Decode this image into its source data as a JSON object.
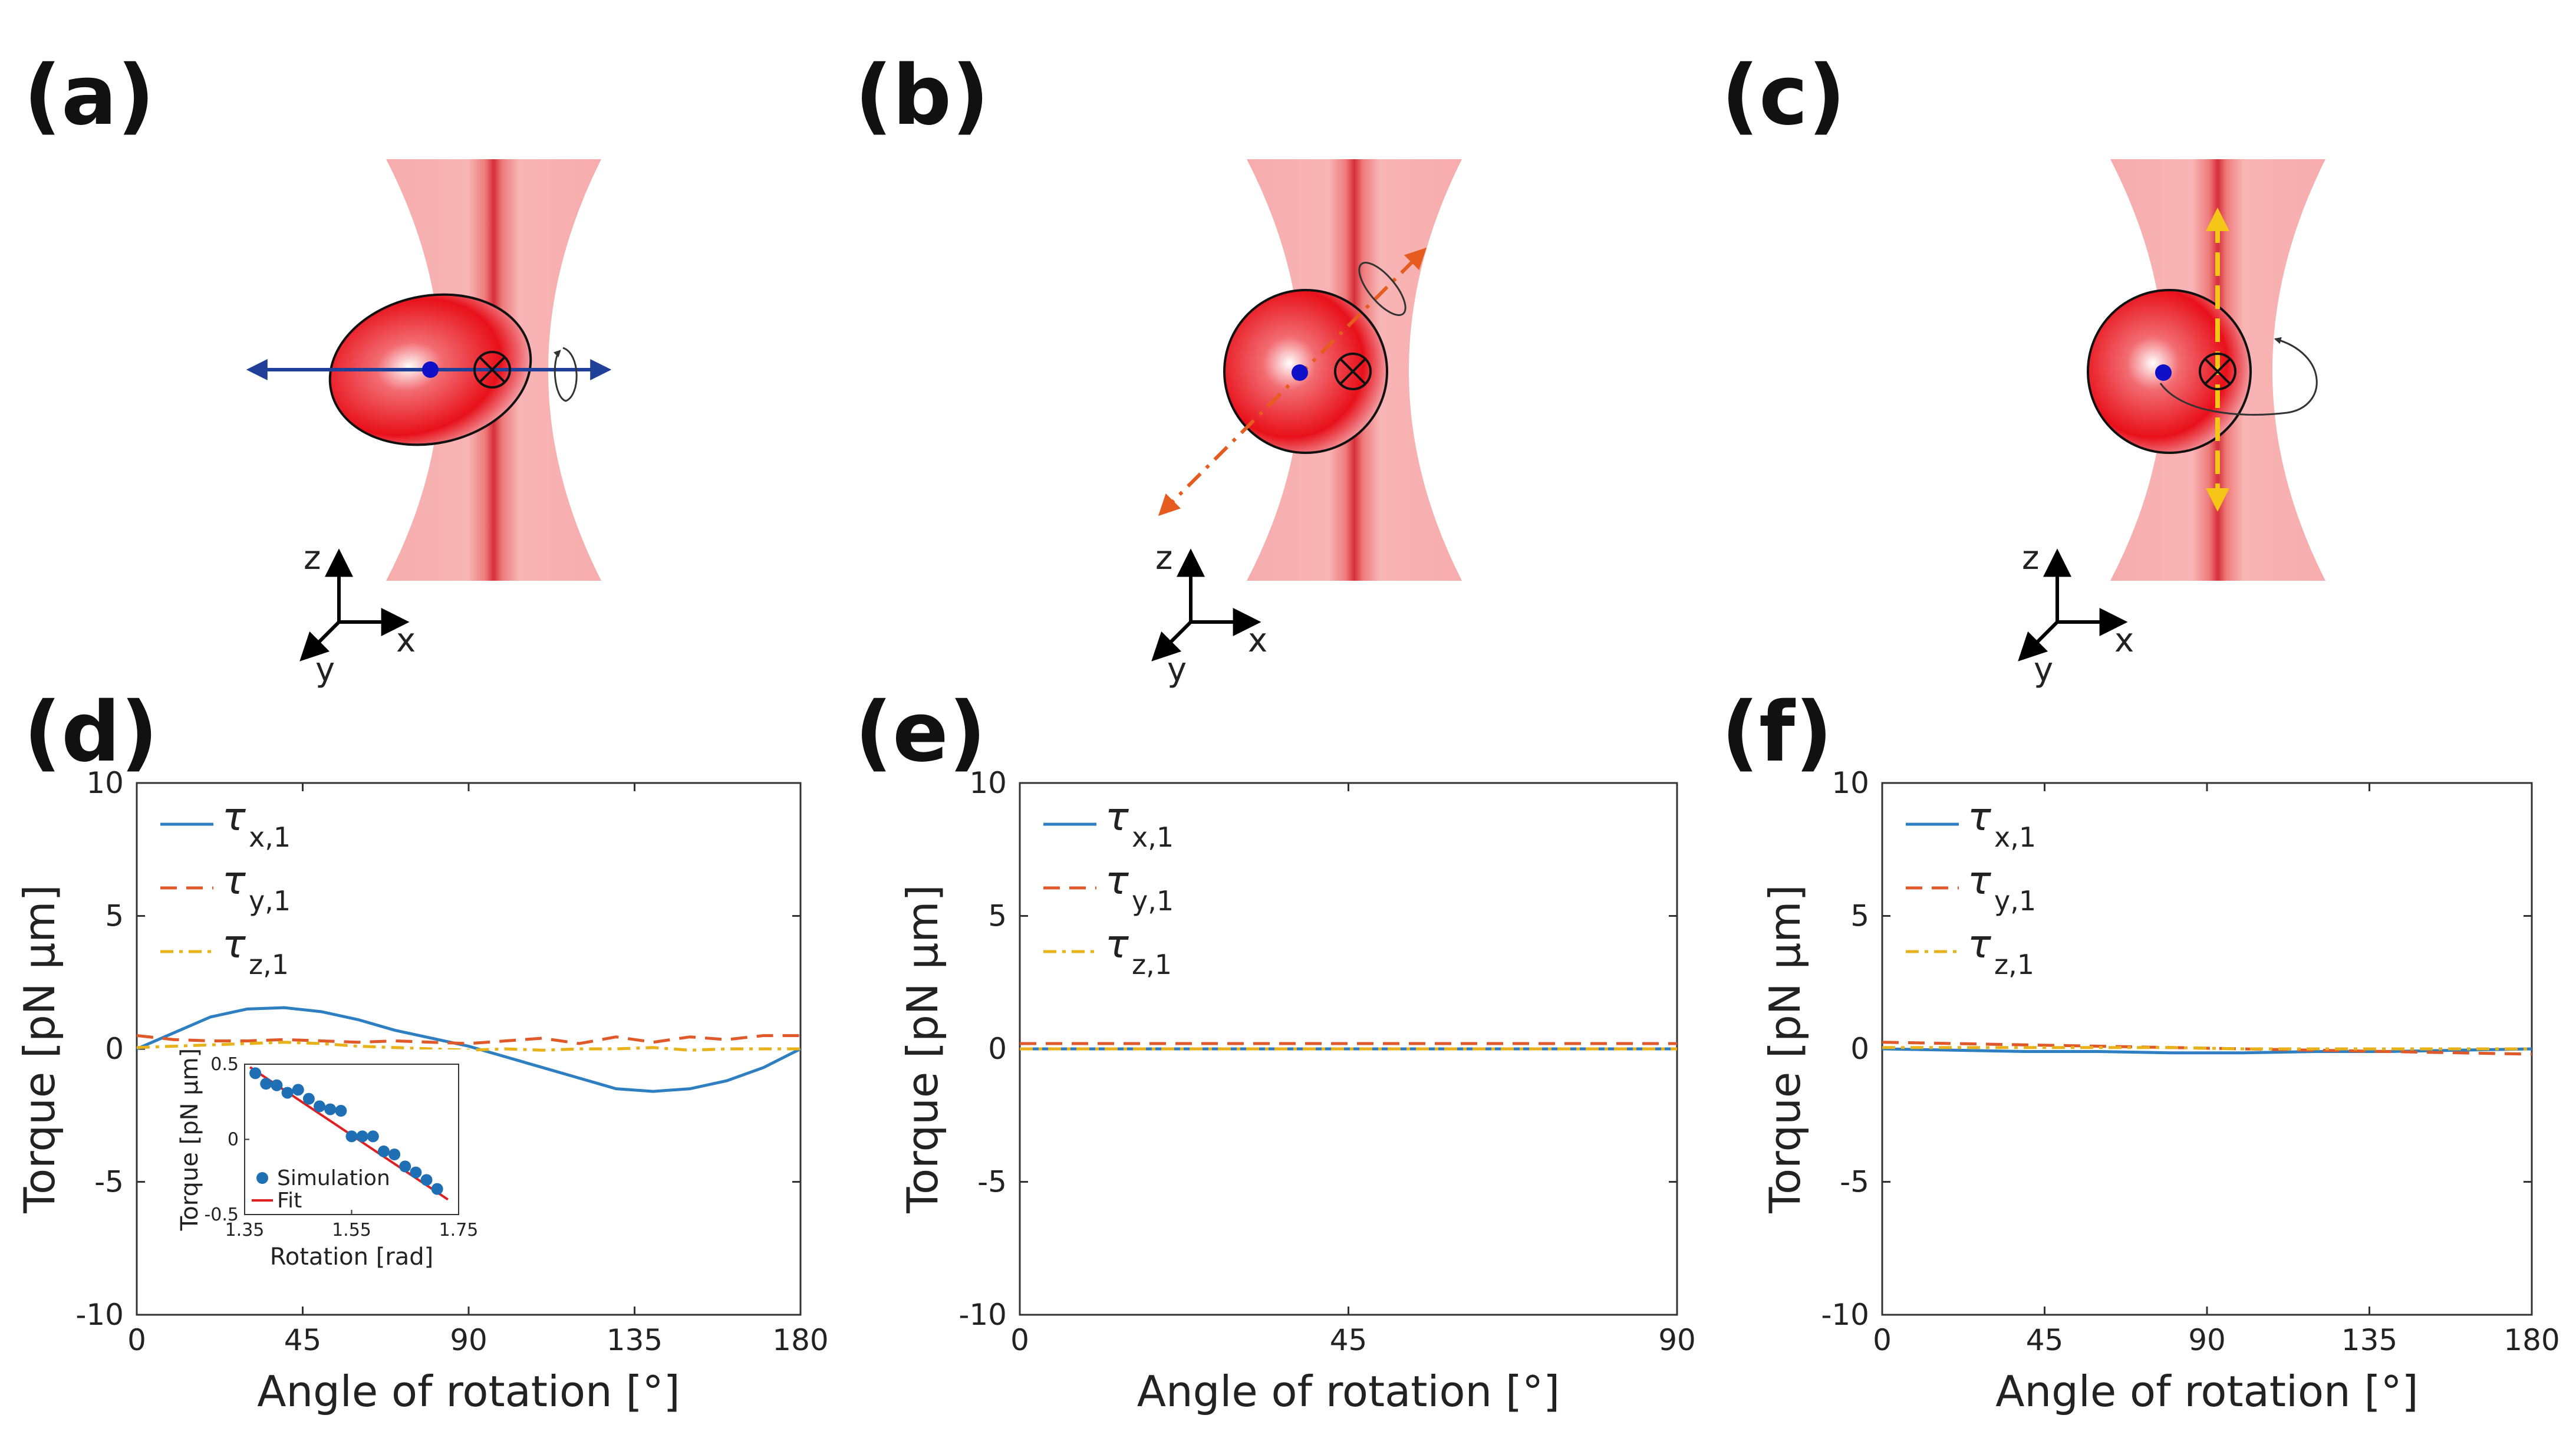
{
  "panel_labels": {
    "a": "(a)",
    "b": "(b)",
    "c": "(c)",
    "d": "(d)",
    "e": "(e)",
    "f": "(f)"
  },
  "coord_labels": {
    "x": "x",
    "y": "y",
    "z": "z"
  },
  "colors": {
    "tau_x": "#2e7fc1",
    "tau_y": "#e0592a",
    "tau_z": "#e8b31a",
    "rotation_axis_a": "#1f3f99",
    "rotation_axis_b": "#e65c1e",
    "rotation_axis_c": "#f5c518",
    "beam": "#f28b8b",
    "particle": "#e8101a",
    "fit": "#e02020",
    "sim_points": "#1f6fb5"
  },
  "legend": {
    "tau": "τ",
    "x_sub": "x,1",
    "y_sub": "y,1",
    "z_sub": "z,1"
  },
  "chart_data": [
    {
      "type": "line",
      "panel": "d",
      "xlabel": "Angle of rotation [°]",
      "ylabel": "Torque [pN µm]",
      "xlim": [
        0,
        180
      ],
      "ylim": [
        -10,
        10
      ],
      "xticks": [
        "0",
        "45",
        "90",
        "135",
        "180"
      ],
      "yticks": [
        "-10",
        "-5",
        "0",
        "5",
        "10"
      ],
      "legend_position": "top-left",
      "x": [
        0,
        10,
        20,
        30,
        40,
        50,
        60,
        70,
        80,
        90,
        100,
        110,
        120,
        130,
        140,
        150,
        160,
        170,
        180
      ],
      "series": [
        {
          "name": "τx,1",
          "values": [
            0.0,
            0.6,
            1.2,
            1.5,
            1.55,
            1.4,
            1.1,
            0.7,
            0.4,
            0.1,
            -0.3,
            -0.7,
            -1.1,
            -1.5,
            -1.6,
            -1.5,
            -1.2,
            -0.7,
            0.0
          ]
        },
        {
          "name": "τy,1",
          "values": [
            0.5,
            0.35,
            0.3,
            0.3,
            0.35,
            0.3,
            0.25,
            0.3,
            0.25,
            0.2,
            0.3,
            0.4,
            0.2,
            0.45,
            0.25,
            0.45,
            0.35,
            0.5,
            0.5
          ]
        },
        {
          "name": "τz,1",
          "values": [
            0.05,
            0.1,
            0.15,
            0.2,
            0.25,
            0.2,
            0.1,
            0.05,
            0.0,
            -0.05,
            0.0,
            -0.05,
            0.0,
            0.0,
            0.05,
            -0.05,
            0.0,
            0.0,
            0.0
          ]
        }
      ],
      "inset": {
        "type": "scatter",
        "xlabel": "Rotation [rad]",
        "ylabel": "Torque [pN µm]",
        "xlim": [
          1.35,
          1.75
        ],
        "ylim": [
          -0.5,
          0.5
        ],
        "xticks": [
          "1.35",
          "1.55",
          "1.75"
        ],
        "yticks": [
          "-0.5",
          "0",
          "0.5"
        ],
        "legend": [
          "Simulation",
          "Fit"
        ],
        "x": [
          1.37,
          1.39,
          1.41,
          1.43,
          1.45,
          1.47,
          1.49,
          1.51,
          1.53,
          1.55,
          1.57,
          1.59,
          1.61,
          1.63,
          1.65,
          1.67,
          1.69,
          1.71
        ],
        "values": [
          0.44,
          0.37,
          0.36,
          0.31,
          0.33,
          0.27,
          0.22,
          0.2,
          0.19,
          0.02,
          0.02,
          0.02,
          -0.08,
          -0.1,
          -0.18,
          -0.22,
          -0.27,
          -0.33
        ],
        "fit": {
          "x": [
            1.36,
            1.73
          ],
          "y": [
            0.48,
            -0.4
          ]
        }
      }
    },
    {
      "type": "line",
      "panel": "e",
      "xlabel": "Angle of rotation [°]",
      "ylabel": "Torque [pN µm]",
      "xlim": [
        0,
        90
      ],
      "ylim": [
        -10,
        10
      ],
      "xticks": [
        "0",
        "45",
        "90"
      ],
      "yticks": [
        "-10",
        "-5",
        "0",
        "5",
        "10"
      ],
      "legend_position": "top-left",
      "x": [
        0,
        90
      ],
      "series": [
        {
          "name": "τx,1",
          "values": [
            0.0,
            0.0
          ]
        },
        {
          "name": "τy,1",
          "values": [
            0.2,
            0.2
          ]
        },
        {
          "name": "τz,1",
          "values": [
            0.0,
            0.0
          ]
        }
      ]
    },
    {
      "type": "line",
      "panel": "f",
      "xlabel": "Angle of rotation [°]",
      "ylabel": "Torque [pN µm]",
      "xlim": [
        0,
        180
      ],
      "ylim": [
        -10,
        10
      ],
      "xticks": [
        "0",
        "45",
        "90",
        "135",
        "180"
      ],
      "yticks": [
        "-10",
        "-5",
        "0",
        "5",
        "10"
      ],
      "legend_position": "top-left",
      "x": [
        0,
        20,
        40,
        60,
        80,
        100,
        120,
        140,
        160,
        180
      ],
      "series": [
        {
          "name": "τx,1",
          "values": [
            0.0,
            -0.05,
            -0.1,
            -0.1,
            -0.15,
            -0.15,
            -0.1,
            -0.1,
            -0.05,
            0.0
          ]
        },
        {
          "name": "τy,1",
          "values": [
            0.25,
            0.2,
            0.15,
            0.1,
            0.05,
            0.0,
            -0.05,
            -0.1,
            -0.15,
            -0.2
          ]
        },
        {
          "name": "τz,1",
          "values": [
            0.05,
            0.05,
            0.05,
            0.05,
            0.05,
            0.0,
            0.0,
            0.0,
            0.0,
            0.0
          ]
        }
      ]
    }
  ]
}
